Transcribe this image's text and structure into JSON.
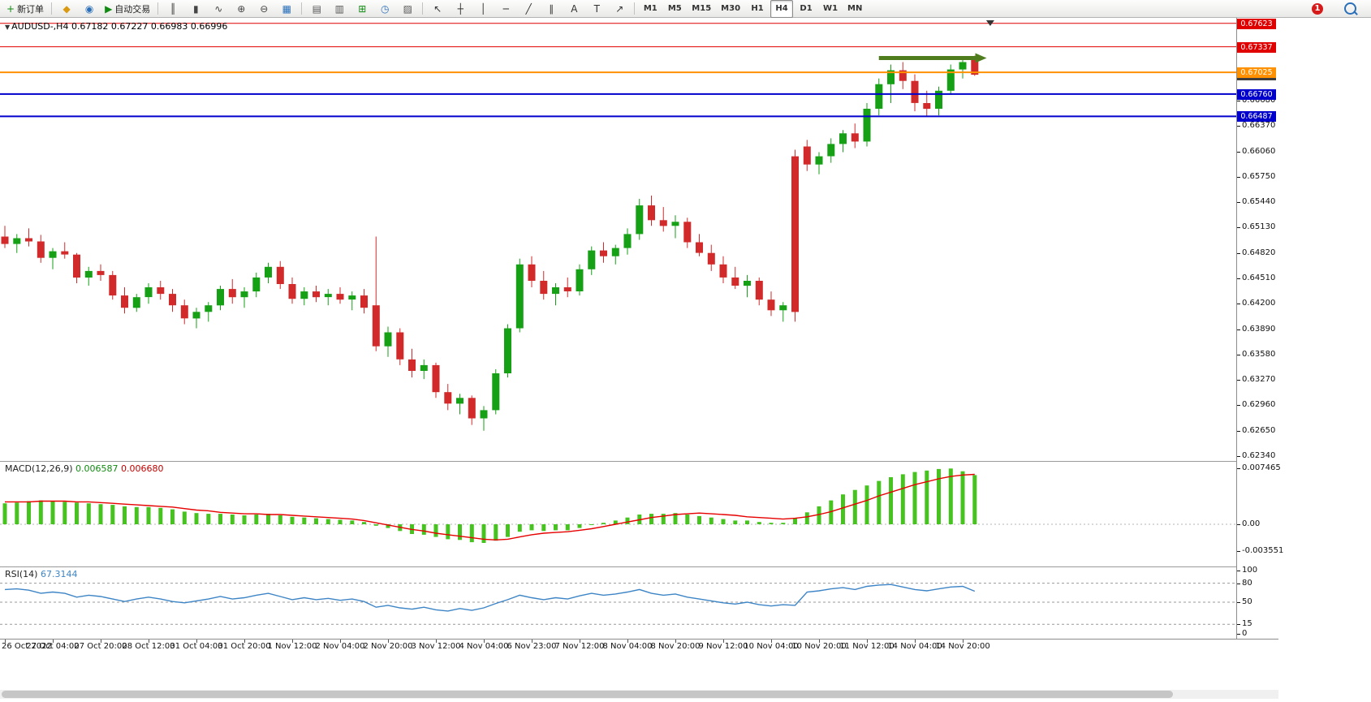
{
  "toolbar": {
    "notification_count": "1",
    "timeframes": [
      "M1",
      "M5",
      "M15",
      "M30",
      "H1",
      "H4",
      "D1",
      "W1",
      "MN"
    ],
    "active_timeframe": "H4",
    "items": [
      {
        "name": "new-order-button",
        "glyph": "+",
        "glyph_color": "#118a11",
        "label": "新订单"
      },
      {
        "name": "separator"
      },
      {
        "name": "market-icon",
        "glyph": "◆",
        "glyph_color": "#d99a12"
      },
      {
        "name": "market-depth-icon",
        "glyph": "◉",
        "glyph_color": "#2a6fb8"
      },
      {
        "name": "algo-trading-button",
        "glyph": "▶",
        "glyph_color": "#118a11",
        "label": "自动交易"
      },
      {
        "name": "separator"
      },
      {
        "name": "bar-chart-button",
        "glyph": "║",
        "glyph_color": "#444"
      },
      {
        "name": "candlestick-chart-button",
        "glyph": "▮",
        "glyph_color": "#444"
      },
      {
        "name": "line-chart-button",
        "glyph": "∿",
        "glyph_color": "#444"
      },
      {
        "name": "zoom-in-button",
        "glyph": "⊕",
        "glyph_color": "#444"
      },
      {
        "name": "zoom-out-button",
        "glyph": "⊖",
        "glyph_color": "#444"
      },
      {
        "name": "tile-windows-button",
        "glyph": "▦",
        "glyph_color": "#2a6fb8"
      },
      {
        "name": "separator"
      },
      {
        "name": "auto-scroll-button",
        "glyph": "▤",
        "glyph_color": "#555"
      },
      {
        "name": "chart-shift-button",
        "glyph": "▥",
        "glyph_color": "#555"
      },
      {
        "name": "indicators-button",
        "glyph": "⊞",
        "glyph_color": "#118a11"
      },
      {
        "name": "clock-button",
        "glyph": "◷",
        "glyph_color": "#2a6fb8"
      },
      {
        "name": "objects-button",
        "glyph": "▨",
        "glyph_color": "#555"
      },
      {
        "name": "separator"
      },
      {
        "name": "cursor-button",
        "glyph": "↖",
        "glyph_color": "#333"
      },
      {
        "name": "crosshair-button",
        "glyph": "┼",
        "glyph_color": "#333"
      },
      {
        "name": "vertical-line-button",
        "glyph": "│",
        "glyph_color": "#333"
      },
      {
        "name": "horizontal-line-button",
        "glyph": "─",
        "glyph_color": "#333"
      },
      {
        "name": "trendline-button",
        "glyph": "╱",
        "glyph_color": "#333"
      },
      {
        "name": "channel-button",
        "glyph": "∥",
        "glyph_color": "#333"
      },
      {
        "name": "text-button",
        "glyph": "A",
        "glyph_color": "#333"
      },
      {
        "name": "label-button",
        "glyph": "T",
        "glyph_color": "#333"
      },
      {
        "name": "arrows-button",
        "glyph": "↗",
        "glyph_color": "#333"
      },
      {
        "name": "separator"
      }
    ]
  },
  "chart": {
    "symbol": "AUDUSD-",
    "timeframe": "H4",
    "ohlc_label": "AUDUSD-,H4  0.67182 0.67227 0.66983 0.66996",
    "current_ohlc": {
      "open": "0.67182",
      "high": "0.67227",
      "low": "0.66983",
      "close": "0.66996"
    }
  },
  "chart_data": [
    {
      "type": "candlestick",
      "symbol": "AUDUSD-",
      "timeframe": "H4",
      "colors": {
        "bull": "#16a016",
        "bear": "#d22a2a"
      },
      "y_axis": {
        "min": 0.6228,
        "max": 0.6769,
        "ticks": [
          0.6761,
          0.673,
          0.6699,
          0.6668,
          0.6637,
          0.6606,
          0.6575,
          0.6544,
          0.6513,
          0.6482,
          0.6451,
          0.642,
          0.6389,
          0.6358,
          0.6327,
          0.6296,
          0.6265,
          0.6234
        ]
      },
      "x_axis": {
        "label_step": 4,
        "labels": [
          "26 Oct 2022",
          "27 Oct 04:00",
          "27 Oct 20:00",
          "28 Oct 12:00",
          "31 Oct 04:00",
          "31 Oct 20:00",
          "1 Nov 12:00",
          "2 Nov 04:00",
          "2 Nov 20:00",
          "3 Nov 12:00",
          "4 Nov 04:00",
          "6 Nov 23:00",
          "7 Nov 12:00",
          "8 Nov 04:00",
          "8 Nov 20:00",
          "9 Nov 12:00",
          "10 Nov 04:00",
          "10 Nov 20:00",
          "11 Nov 12:00",
          "14 Nov 04:00",
          "14 Nov 20:00"
        ]
      },
      "hlines": [
        {
          "price": 0.67623,
          "color": "#e00000",
          "label": "0.67623",
          "width": 1
        },
        {
          "price": 0.67337,
          "color": "#e00000",
          "label": "0.67337",
          "width": 1
        },
        {
          "price": 0.67025,
          "color": "#ff9000",
          "label": "0.67025",
          "width": 2
        },
        {
          "price": 0.6676,
          "color": "#0000cd",
          "label": "0.66760",
          "width": 2
        },
        {
          "price": 0.66487,
          "color": "#0000cd",
          "label": "0.66487",
          "width": 2
        }
      ],
      "bid_label": {
        "price": 0.66996,
        "text": "0.66996",
        "bg": "#3c3c3c"
      },
      "arrow": {
        "start_index": 73,
        "end_index": 82,
        "price": 0.672,
        "color": "#4f7d1e"
      },
      "shift_marker_index": 82.3,
      "candles": [
        [
          0.6502,
          0.6515,
          0.6488,
          0.6493
        ],
        [
          0.6493,
          0.6505,
          0.6482,
          0.65
        ],
        [
          0.65,
          0.6512,
          0.649,
          0.6496
        ],
        [
          0.6496,
          0.6504,
          0.647,
          0.6476
        ],
        [
          0.6476,
          0.6488,
          0.6462,
          0.6484
        ],
        [
          0.6484,
          0.6495,
          0.6475,
          0.648
        ],
        [
          0.648,
          0.6482,
          0.6445,
          0.6452
        ],
        [
          0.6452,
          0.6465,
          0.6442,
          0.646
        ],
        [
          0.646,
          0.6468,
          0.6448,
          0.6455
        ],
        [
          0.6455,
          0.646,
          0.6425,
          0.643
        ],
        [
          0.643,
          0.644,
          0.6408,
          0.6415
        ],
        [
          0.6415,
          0.6432,
          0.641,
          0.6428
        ],
        [
          0.6428,
          0.6445,
          0.642,
          0.644
        ],
        [
          0.644,
          0.6448,
          0.6425,
          0.6432
        ],
        [
          0.6432,
          0.6438,
          0.641,
          0.6418
        ],
        [
          0.6418,
          0.6425,
          0.6395,
          0.6402
        ],
        [
          0.6402,
          0.6415,
          0.639,
          0.641
        ],
        [
          0.641,
          0.6422,
          0.6398,
          0.6418
        ],
        [
          0.6418,
          0.6442,
          0.6412,
          0.6438
        ],
        [
          0.6438,
          0.645,
          0.642,
          0.6428
        ],
        [
          0.6428,
          0.644,
          0.6415,
          0.6435
        ],
        [
          0.6435,
          0.6458,
          0.6428,
          0.6452
        ],
        [
          0.6452,
          0.647,
          0.6445,
          0.6465
        ],
        [
          0.6465,
          0.6472,
          0.6438,
          0.6444
        ],
        [
          0.6444,
          0.6452,
          0.642,
          0.6426
        ],
        [
          0.6426,
          0.644,
          0.6418,
          0.6435
        ],
        [
          0.6435,
          0.6442,
          0.6422,
          0.6428
        ],
        [
          0.6428,
          0.6438,
          0.6418,
          0.6432
        ],
        [
          0.6432,
          0.644,
          0.642,
          0.6425
        ],
        [
          0.6425,
          0.6435,
          0.6412,
          0.643
        ],
        [
          0.643,
          0.6438,
          0.6408,
          0.6415
        ],
        [
          0.6418,
          0.6502,
          0.6362,
          0.6368
        ],
        [
          0.6368,
          0.6392,
          0.6355,
          0.6385
        ],
        [
          0.6385,
          0.639,
          0.6345,
          0.6352
        ],
        [
          0.6352,
          0.6365,
          0.633,
          0.6338
        ],
        [
          0.6338,
          0.6352,
          0.6328,
          0.6345
        ],
        [
          0.6345,
          0.6348,
          0.6305,
          0.6312
        ],
        [
          0.6312,
          0.6322,
          0.629,
          0.6298
        ],
        [
          0.6298,
          0.631,
          0.6285,
          0.6305
        ],
        [
          0.6305,
          0.6308,
          0.6272,
          0.628
        ],
        [
          0.628,
          0.6295,
          0.6265,
          0.629
        ],
        [
          0.629,
          0.634,
          0.6285,
          0.6335
        ],
        [
          0.6335,
          0.6395,
          0.633,
          0.639
        ],
        [
          0.639,
          0.6475,
          0.6385,
          0.6468
        ],
        [
          0.6468,
          0.6478,
          0.644,
          0.6448
        ],
        [
          0.6448,
          0.646,
          0.6425,
          0.6432
        ],
        [
          0.6432,
          0.6445,
          0.6418,
          0.644
        ],
        [
          0.644,
          0.6452,
          0.6428,
          0.6435
        ],
        [
          0.6435,
          0.6468,
          0.643,
          0.6462
        ],
        [
          0.6462,
          0.649,
          0.6455,
          0.6485
        ],
        [
          0.6485,
          0.6495,
          0.647,
          0.6478
        ],
        [
          0.6478,
          0.6492,
          0.6468,
          0.6488
        ],
        [
          0.6488,
          0.6512,
          0.648,
          0.6505
        ],
        [
          0.6505,
          0.6548,
          0.6498,
          0.654
        ],
        [
          0.654,
          0.6552,
          0.6515,
          0.6522
        ],
        [
          0.6522,
          0.6538,
          0.6508,
          0.6515
        ],
        [
          0.6515,
          0.6528,
          0.65,
          0.652
        ],
        [
          0.652,
          0.6525,
          0.6488,
          0.6495
        ],
        [
          0.6495,
          0.6505,
          0.6478,
          0.6482
        ],
        [
          0.6482,
          0.6492,
          0.646,
          0.6468
        ],
        [
          0.6468,
          0.6478,
          0.6445,
          0.6452
        ],
        [
          0.6452,
          0.6465,
          0.6438,
          0.6442
        ],
        [
          0.6442,
          0.6455,
          0.6428,
          0.6448
        ],
        [
          0.6448,
          0.6452,
          0.6418,
          0.6425
        ],
        [
          0.6425,
          0.6435,
          0.6405,
          0.6412
        ],
        [
          0.6412,
          0.6422,
          0.6398,
          0.6418
        ],
        [
          0.66,
          0.6608,
          0.6398,
          0.641
        ],
        [
          0.6612,
          0.662,
          0.6582,
          0.659
        ],
        [
          0.659,
          0.6605,
          0.6578,
          0.66
        ],
        [
          0.66,
          0.6622,
          0.6592,
          0.6615
        ],
        [
          0.6615,
          0.6632,
          0.6605,
          0.6628
        ],
        [
          0.6628,
          0.664,
          0.661,
          0.6618
        ],
        [
          0.6618,
          0.6665,
          0.6612,
          0.6658
        ],
        [
          0.6658,
          0.6695,
          0.665,
          0.6688
        ],
        [
          0.6688,
          0.6712,
          0.6665,
          0.6705
        ],
        [
          0.6705,
          0.6715,
          0.6682,
          0.6692
        ],
        [
          0.6692,
          0.67,
          0.6655,
          0.6665
        ],
        [
          0.6665,
          0.668,
          0.6648,
          0.6658
        ],
        [
          0.6658,
          0.6685,
          0.665,
          0.668
        ],
        [
          0.668,
          0.6712,
          0.6675,
          0.6706
        ],
        [
          0.6706,
          0.6722,
          0.6695,
          0.6715
        ],
        [
          0.67182,
          0.67227,
          0.66983,
          0.66996
        ]
      ]
    },
    {
      "type": "bar",
      "name": "MACD",
      "label": "MACD(12,26,9)",
      "value_main": "0.006587",
      "value_signal": "0.006680",
      "axis_labels": [
        "0.007465",
        "0.00",
        "-0.003551"
      ],
      "axis_max": 0.007465,
      "axis_min": -0.003551,
      "colors": {
        "histogram": "#46c31e",
        "signal": "#e60000"
      },
      "histogram": [
        0.0028,
        0.0029,
        0.0031,
        0.0032,
        0.0031,
        0.003,
        0.0029,
        0.0028,
        0.0027,
        0.0026,
        0.0024,
        0.0023,
        0.0023,
        0.0022,
        0.002,
        0.0017,
        0.0015,
        0.0014,
        0.0014,
        0.0013,
        0.0012,
        0.0013,
        0.0014,
        0.0012,
        0.001,
        0.0009,
        0.0008,
        0.0007,
        0.0006,
        0.0005,
        0.0003,
        -0.0002,
        -0.0005,
        -0.0009,
        -0.0013,
        -0.0014,
        -0.0017,
        -0.002,
        -0.0021,
        -0.0024,
        -0.0025,
        -0.0022,
        -0.0017,
        -0.001,
        -0.0008,
        -0.0009,
        -0.0008,
        -0.0008,
        -0.0005,
        -0.0001,
        0.0002,
        0.0005,
        0.0009,
        0.0013,
        0.0014,
        0.0014,
        0.0015,
        0.0013,
        0.0011,
        0.0009,
        0.0007,
        0.0005,
        0.0005,
        0.0003,
        0.0002,
        0.0002,
        0.0008,
        0.0016,
        0.0024,
        0.0032,
        0.004,
        0.0046,
        0.0052,
        0.0058,
        0.0063,
        0.0067,
        0.007,
        0.0072,
        0.0074,
        0.007465,
        0.0071,
        0.006587
      ],
      "signal": [
        0.003,
        0.003,
        0.003,
        0.0031,
        0.0031,
        0.0031,
        0.003,
        0.003,
        0.0029,
        0.0028,
        0.0027,
        0.0026,
        0.0025,
        0.0024,
        0.0023,
        0.0021,
        0.0019,
        0.0018,
        0.0016,
        0.0015,
        0.0014,
        0.0014,
        0.0013,
        0.0013,
        0.0012,
        0.0011,
        0.001,
        0.0009,
        0.0008,
        0.0007,
        0.0005,
        0.0002,
        -0.0001,
        -0.0004,
        -0.0007,
        -0.0009,
        -0.0012,
        -0.0014,
        -0.0016,
        -0.0018,
        -0.002,
        -0.0021,
        -0.002,
        -0.0017,
        -0.0014,
        -0.0012,
        -0.0011,
        -0.001,
        -0.0008,
        -0.0006,
        -0.0003,
        0.0,
        0.0003,
        0.0006,
        0.0009,
        0.0011,
        0.0013,
        0.0014,
        0.0015,
        0.0014,
        0.0013,
        0.0012,
        0.001,
        0.0009,
        0.0008,
        0.0007,
        0.0008,
        0.001,
        0.0013,
        0.0017,
        0.0022,
        0.0027,
        0.0032,
        0.0038,
        0.0043,
        0.0048,
        0.0053,
        0.0057,
        0.0061,
        0.0064,
        0.0066,
        0.00668
      ]
    },
    {
      "type": "line",
      "name": "RSI",
      "label": "RSI(14)",
      "value_label": "67.3144",
      "axis_labels": [
        "100",
        "80",
        "50",
        "15",
        "0"
      ],
      "levels": [
        80,
        50,
        15
      ],
      "color": "#3d85c6",
      "values": [
        70,
        71,
        69,
        64,
        66,
        64,
        58,
        61,
        59,
        55,
        51,
        55,
        58,
        55,
        51,
        49,
        52,
        55,
        59,
        55,
        57,
        61,
        64,
        59,
        54,
        57,
        54,
        56,
        53,
        55,
        51,
        42,
        45,
        41,
        39,
        42,
        38,
        36,
        40,
        37,
        41,
        48,
        54,
        61,
        57,
        54,
        57,
        55,
        60,
        64,
        61,
        63,
        66,
        70,
        64,
        61,
        63,
        58,
        55,
        52,
        49,
        47,
        50,
        46,
        44,
        46,
        45,
        66,
        68,
        71,
        73,
        70,
        75,
        77,
        78,
        74,
        70,
        68,
        71,
        74,
        75,
        67.3144
      ]
    }
  ]
}
